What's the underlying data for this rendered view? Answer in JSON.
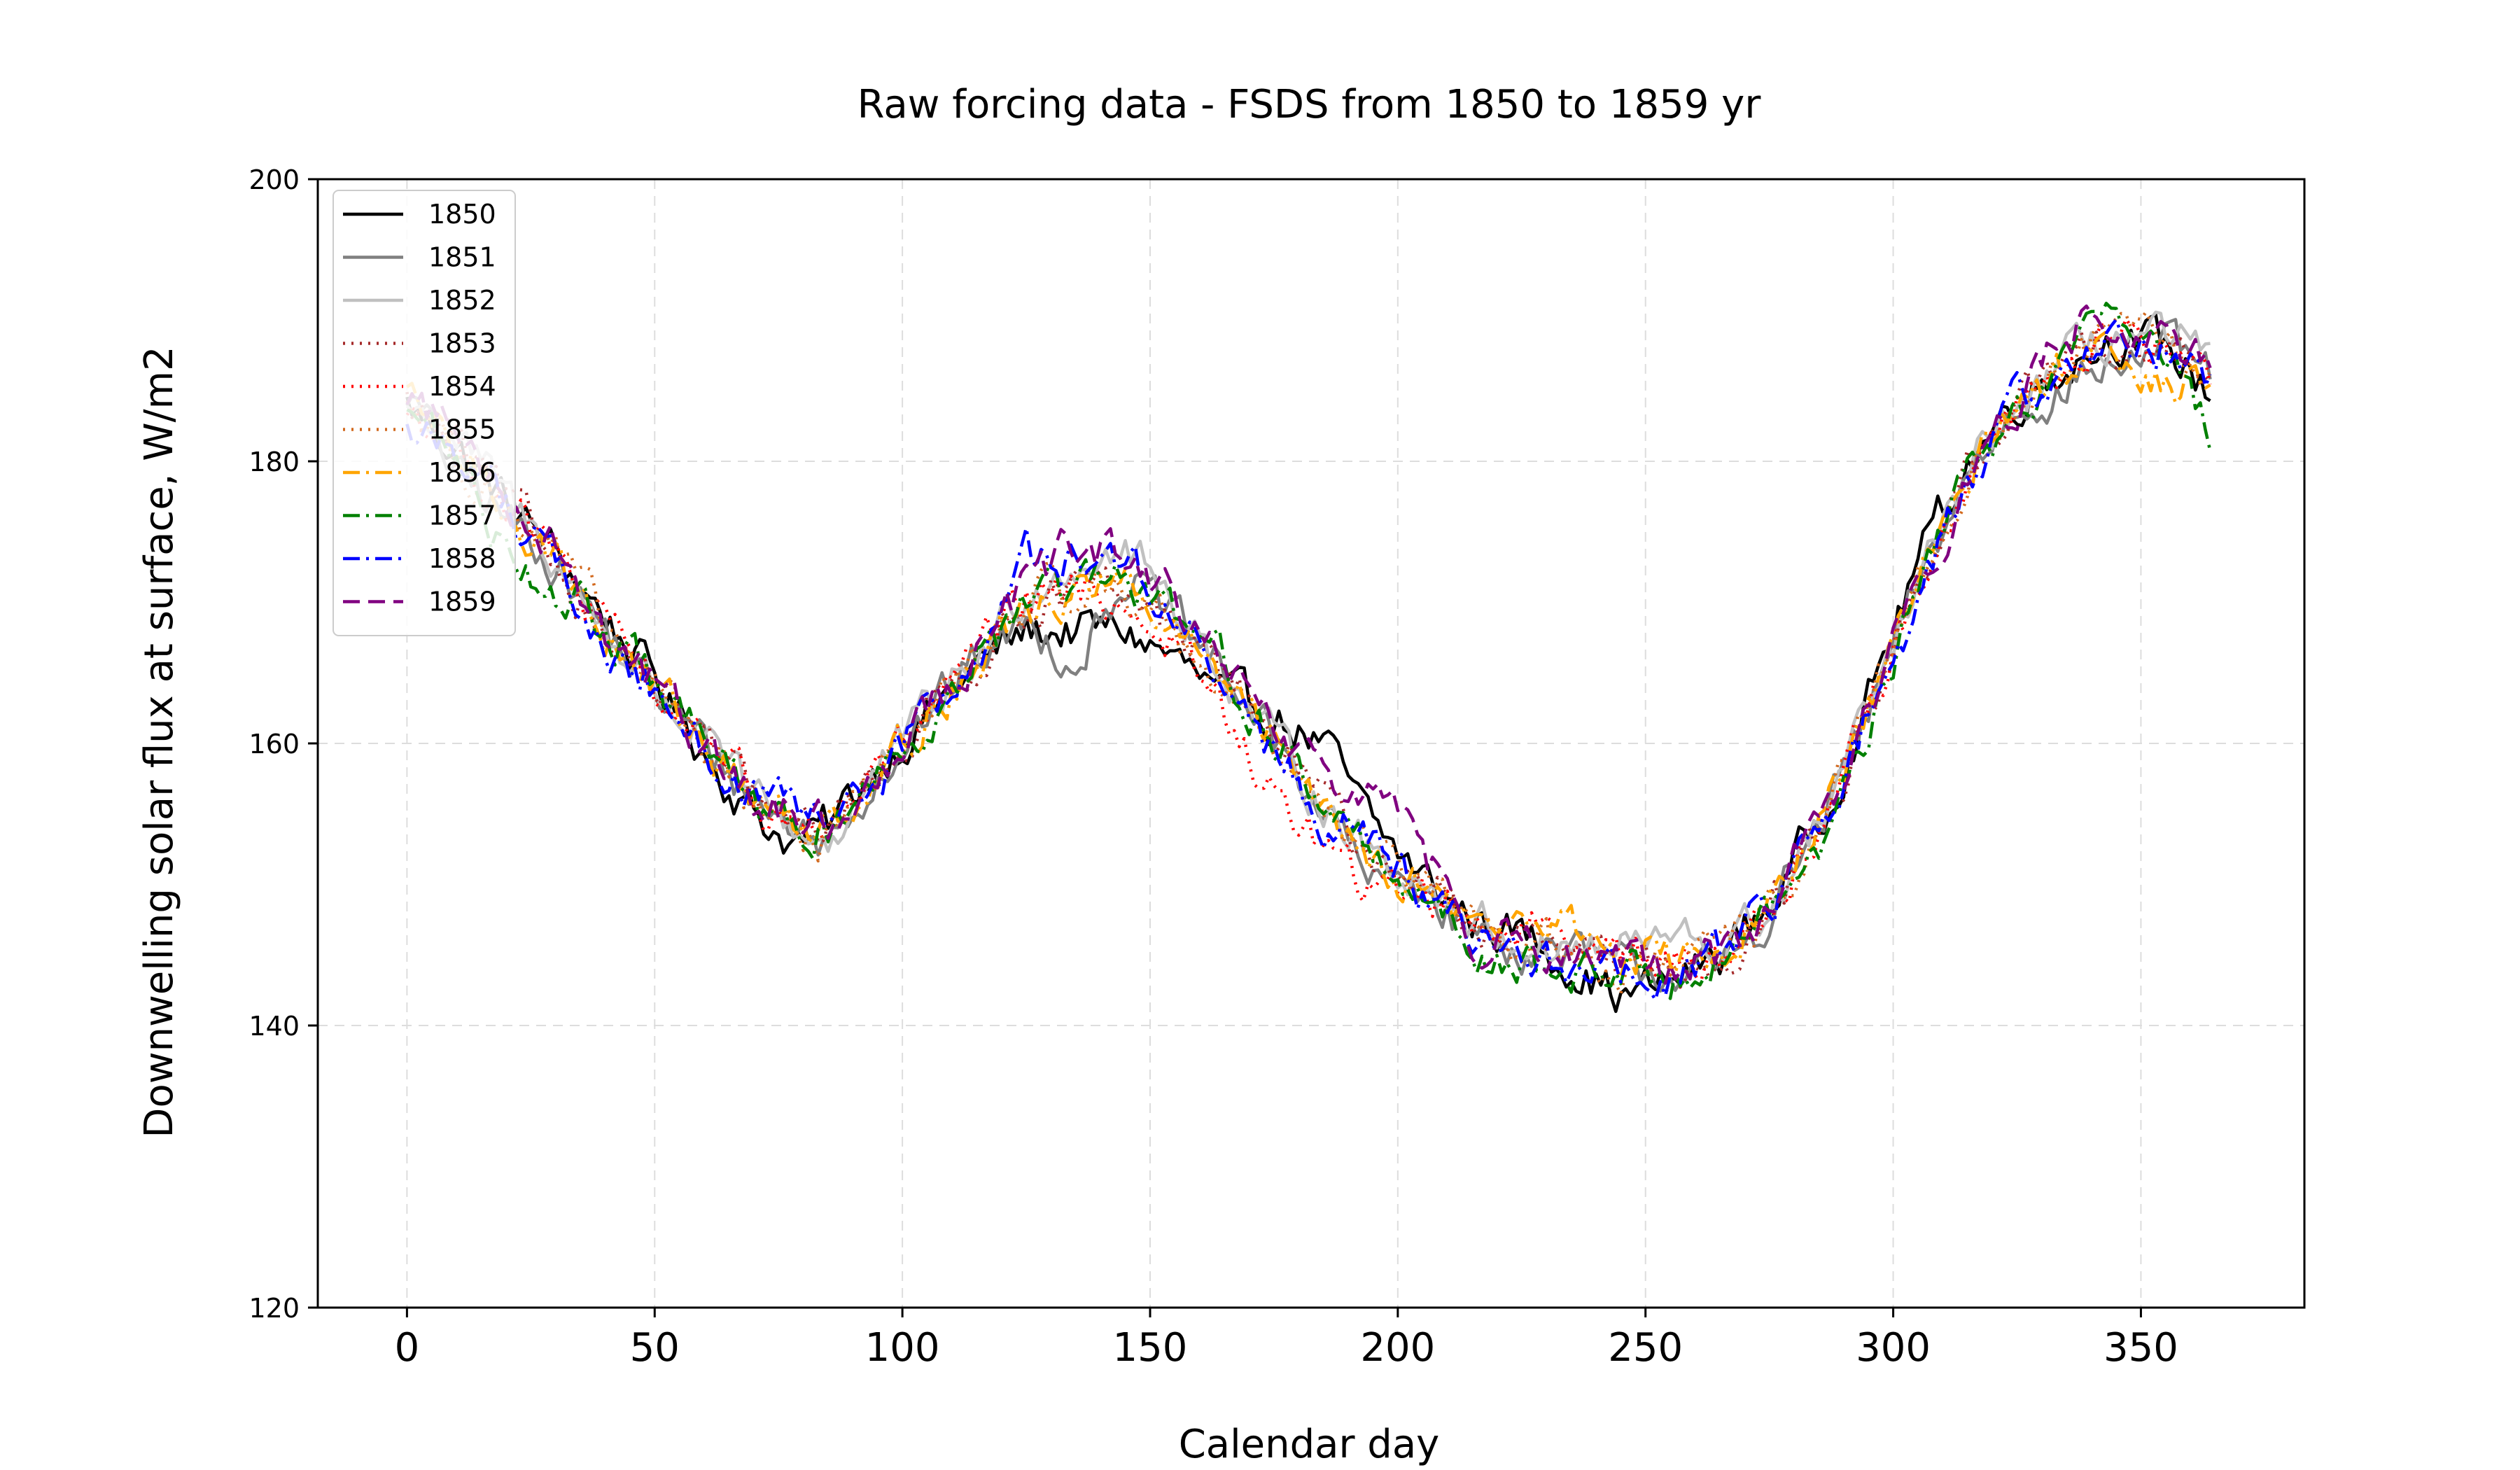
{
  "chart_data": {
    "type": "line",
    "title": "Raw forcing data - FSDS from 1850 to 1859 yr",
    "xlabel": "Calendar day",
    "ylabel": "Downwelling solar flux at surface, W/m2",
    "xlim": [
      -18,
      383
    ],
    "ylim": [
      120,
      200
    ],
    "x_ticks": [
      0,
      50,
      100,
      150,
      200,
      250,
      300,
      350
    ],
    "y_ticks": [
      120,
      140,
      160,
      180,
      200
    ],
    "grid": true,
    "legend_position": "top-left",
    "baseline": {
      "x": [
        0,
        10,
        20,
        30,
        40,
        50,
        60,
        70,
        78,
        85,
        95,
        105,
        115,
        125,
        135,
        145,
        155,
        165,
        175,
        185,
        195,
        205,
        215,
        225,
        235,
        245,
        255,
        265,
        275,
        285,
        295,
        305,
        315,
        325,
        335,
        345,
        355,
        364
      ],
      "y": [
        184,
        181,
        177,
        173,
        168,
        164,
        160,
        156,
        154,
        154,
        158,
        162,
        166,
        170,
        171,
        171,
        168,
        164,
        160,
        156,
        152,
        150,
        147,
        146,
        145,
        144,
        144,
        145,
        148,
        154,
        162,
        171,
        179,
        184,
        187,
        189,
        188,
        186
      ]
    },
    "series": [
      {
        "name": "1850",
        "color": "#000000",
        "dash": "solid",
        "offset": [
          0.0,
          0.0,
          0.0,
          0.5,
          1.0,
          0.5,
          -0.5,
          -1.0,
          -1.0,
          0.0,
          0.5,
          0.0,
          -0.5,
          -2.0,
          -3.0,
          -3.0,
          -2.0,
          -1.0,
          2.0,
          4.0,
          2.0,
          0.5,
          0.5,
          0.5,
          -0.5,
          -2.0,
          -1.0,
          0.0,
          0.5,
          0.5,
          1.0,
          2.0,
          1.0,
          0.5,
          0.0,
          0.0,
          0.0,
          -1.0
        ]
      },
      {
        "name": "1851",
        "color": "#808080",
        "dash": "solid",
        "offset": [
          1.0,
          -2.0,
          -1.0,
          0.0,
          0.0,
          -0.5,
          0.0,
          0.0,
          0.0,
          -1.0,
          0.0,
          0.0,
          0.0,
          -1.5,
          -5.0,
          1.0,
          0.5,
          1.0,
          0.0,
          -0.5,
          -2.0,
          0.0,
          -0.5,
          -0.5,
          0.0,
          0.0,
          0.0,
          -1.5,
          0.0,
          0.0,
          0.0,
          0.0,
          0.0,
          0.0,
          -1.5,
          -2.0,
          0.0,
          0.0
        ]
      },
      {
        "name": "1852",
        "color": "#c0c0c0",
        "dash": "solid",
        "offset": [
          0.0,
          0.5,
          0.5,
          0.0,
          0.0,
          0.0,
          0.0,
          0.0,
          0.0,
          -1.0,
          0.0,
          0.0,
          0.0,
          1.0,
          2.0,
          3.0,
          2.0,
          1.0,
          0.0,
          0.0,
          0.0,
          0.5,
          0.5,
          0.0,
          0.5,
          1.5,
          2.0,
          0.5,
          0.0,
          0.0,
          0.0,
          0.0,
          0.0,
          0.0,
          0.0,
          0.0,
          0.5,
          1.0
        ]
      },
      {
        "name": "1853",
        "color": "#a52a2a",
        "dash": "dot",
        "offset": [
          0.0,
          0.0,
          0.0,
          0.0,
          0.0,
          0.0,
          0.0,
          0.0,
          0.0,
          0.0,
          0.0,
          0.0,
          0.0,
          0.0,
          0.0,
          -1.0,
          0.5,
          1.0,
          0.0,
          0.0,
          0.0,
          0.0,
          0.0,
          0.0,
          0.0,
          0.0,
          0.0,
          0.0,
          0.0,
          0.0,
          0.0,
          0.0,
          0.0,
          0.0,
          0.0,
          0.0,
          0.0,
          0.0
        ]
      },
      {
        "name": "1854",
        "color": "#ff0000",
        "dash": "dot",
        "offset": [
          0.0,
          0.0,
          0.0,
          0.0,
          0.0,
          0.0,
          0.0,
          0.0,
          0.0,
          0.0,
          0.0,
          0.0,
          0.0,
          0.0,
          0.0,
          -1.0,
          -1.0,
          -2.0,
          -4.0,
          -3.0,
          -3.0,
          0.0,
          0.5,
          1.0,
          2.0,
          1.5,
          0.0,
          0.0,
          0.0,
          0.0,
          0.0,
          0.0,
          0.0,
          0.0,
          0.0,
          0.0,
          0.0,
          0.0
        ]
      },
      {
        "name": "1855",
        "color": "#d2691e",
        "dash": "dot",
        "offset": [
          0.0,
          0.0,
          0.0,
          0.5,
          0.0,
          0.0,
          0.0,
          0.0,
          0.0,
          -1.0,
          0.0,
          0.0,
          0.0,
          0.0,
          0.0,
          0.0,
          0.0,
          0.0,
          0.0,
          0.0,
          0.0,
          0.0,
          0.0,
          0.0,
          0.0,
          0.0,
          0.0,
          0.0,
          0.0,
          0.0,
          0.0,
          0.0,
          0.0,
          0.0,
          0.0,
          0.0,
          0.0,
          0.0
        ]
      },
      {
        "name": "1856",
        "color": "#ffa500",
        "dash": "dashdot",
        "offset": [
          0.0,
          0.0,
          0.0,
          0.0,
          0.0,
          0.0,
          0.0,
          0.0,
          0.0,
          1.0,
          0.0,
          0.0,
          0.0,
          -1.0,
          0.0,
          0.0,
          0.0,
          0.0,
          0.0,
          0.0,
          0.0,
          0.0,
          0.0,
          1.5,
          2.0,
          1.0,
          0.5,
          0.0,
          0.0,
          0.0,
          0.0,
          0.0,
          0.0,
          0.0,
          0.0,
          0.0,
          -3.0,
          0.0
        ]
      },
      {
        "name": "1857",
        "color": "#008000",
        "dash": "dashdot",
        "offset": [
          0.0,
          -1.0,
          -3.0,
          -2.0,
          0.0,
          0.0,
          0.0,
          0.0,
          -1.0,
          0.0,
          0.0,
          0.0,
          0.0,
          -0.5,
          0.0,
          0.0,
          1.0,
          2.0,
          0.0,
          0.0,
          0.0,
          0.0,
          -2.0,
          -1.0,
          -2.0,
          0.0,
          0.0,
          0.0,
          0.0,
          -1.5,
          -1.0,
          0.0,
          0.0,
          0.0,
          0.0,
          2.0,
          0.0,
          -4.0
        ]
      },
      {
        "name": "1858",
        "color": "#0000ff",
        "dash": "dashdot",
        "offset": [
          -2.0,
          0.0,
          0.0,
          0.0,
          -2.0,
          0.0,
          0.0,
          0.0,
          1.0,
          0.0,
          -1.0,
          0.0,
          0.0,
          3.0,
          2.0,
          2.0,
          1.0,
          0.0,
          -1.0,
          -1.0,
          1.0,
          -1.0,
          -1.0,
          -0.5,
          -1.0,
          -0.5,
          -1.0,
          0.0,
          0.0,
          0.0,
          0.0,
          -2.0,
          0.0,
          0.0,
          0.0,
          0.0,
          0.0,
          0.0
        ]
      },
      {
        "name": "1859",
        "color": "#800080",
        "dash": "dash",
        "offset": [
          1.0,
          1.0,
          1.0,
          1.0,
          0.0,
          0.0,
          0.0,
          0.0,
          1.0,
          0.0,
          0.0,
          1.0,
          0.0,
          1.0,
          3.0,
          2.0,
          2.0,
          1.0,
          1.0,
          1.0,
          5.0,
          2.0,
          0.0,
          0.0,
          0.0,
          0.0,
          0.0,
          0.0,
          0.0,
          0.0,
          0.0,
          0.0,
          0.0,
          0.0,
          2.0,
          2.0,
          1.0,
          0.0
        ]
      }
    ]
  }
}
